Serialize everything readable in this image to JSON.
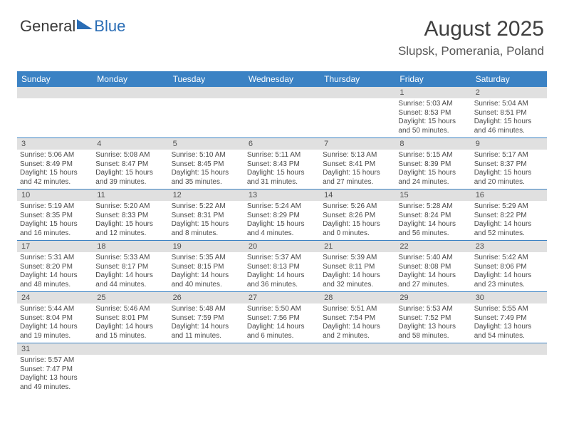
{
  "logo": {
    "part1": "General",
    "part2": "Blue"
  },
  "title": "August 2025",
  "location": "Slupsk, Pomerania, Poland",
  "weekdays": [
    "Sunday",
    "Monday",
    "Tuesday",
    "Wednesday",
    "Thursday",
    "Friday",
    "Saturday"
  ],
  "colors": {
    "header_bg": "#3b82c4",
    "daynum_bg": "#e0e0e0",
    "text": "#4a4a4a"
  },
  "weeks": [
    {
      "numbers": [
        "",
        "",
        "",
        "",
        "",
        "1",
        "2"
      ],
      "cells": [
        "",
        "",
        "",
        "",
        "",
        "Sunrise: 5:03 AM\nSunset: 8:53 PM\nDaylight: 15 hours\nand 50 minutes.",
        "Sunrise: 5:04 AM\nSunset: 8:51 PM\nDaylight: 15 hours\nand 46 minutes."
      ]
    },
    {
      "numbers": [
        "3",
        "4",
        "5",
        "6",
        "7",
        "8",
        "9"
      ],
      "cells": [
        "Sunrise: 5:06 AM\nSunset: 8:49 PM\nDaylight: 15 hours\nand 42 minutes.",
        "Sunrise: 5:08 AM\nSunset: 8:47 PM\nDaylight: 15 hours\nand 39 minutes.",
        "Sunrise: 5:10 AM\nSunset: 8:45 PM\nDaylight: 15 hours\nand 35 minutes.",
        "Sunrise: 5:11 AM\nSunset: 8:43 PM\nDaylight: 15 hours\nand 31 minutes.",
        "Sunrise: 5:13 AM\nSunset: 8:41 PM\nDaylight: 15 hours\nand 27 minutes.",
        "Sunrise: 5:15 AM\nSunset: 8:39 PM\nDaylight: 15 hours\nand 24 minutes.",
        "Sunrise: 5:17 AM\nSunset: 8:37 PM\nDaylight: 15 hours\nand 20 minutes."
      ]
    },
    {
      "numbers": [
        "10",
        "11",
        "12",
        "13",
        "14",
        "15",
        "16"
      ],
      "cells": [
        "Sunrise: 5:19 AM\nSunset: 8:35 PM\nDaylight: 15 hours\nand 16 minutes.",
        "Sunrise: 5:20 AM\nSunset: 8:33 PM\nDaylight: 15 hours\nand 12 minutes.",
        "Sunrise: 5:22 AM\nSunset: 8:31 PM\nDaylight: 15 hours\nand 8 minutes.",
        "Sunrise: 5:24 AM\nSunset: 8:29 PM\nDaylight: 15 hours\nand 4 minutes.",
        "Sunrise: 5:26 AM\nSunset: 8:26 PM\nDaylight: 15 hours\nand 0 minutes.",
        "Sunrise: 5:28 AM\nSunset: 8:24 PM\nDaylight: 14 hours\nand 56 minutes.",
        "Sunrise: 5:29 AM\nSunset: 8:22 PM\nDaylight: 14 hours\nand 52 minutes."
      ]
    },
    {
      "numbers": [
        "17",
        "18",
        "19",
        "20",
        "21",
        "22",
        "23"
      ],
      "cells": [
        "Sunrise: 5:31 AM\nSunset: 8:20 PM\nDaylight: 14 hours\nand 48 minutes.",
        "Sunrise: 5:33 AM\nSunset: 8:17 PM\nDaylight: 14 hours\nand 44 minutes.",
        "Sunrise: 5:35 AM\nSunset: 8:15 PM\nDaylight: 14 hours\nand 40 minutes.",
        "Sunrise: 5:37 AM\nSunset: 8:13 PM\nDaylight: 14 hours\nand 36 minutes.",
        "Sunrise: 5:39 AM\nSunset: 8:11 PM\nDaylight: 14 hours\nand 32 minutes.",
        "Sunrise: 5:40 AM\nSunset: 8:08 PM\nDaylight: 14 hours\nand 27 minutes.",
        "Sunrise: 5:42 AM\nSunset: 8:06 PM\nDaylight: 14 hours\nand 23 minutes."
      ]
    },
    {
      "numbers": [
        "24",
        "25",
        "26",
        "27",
        "28",
        "29",
        "30"
      ],
      "cells": [
        "Sunrise: 5:44 AM\nSunset: 8:04 PM\nDaylight: 14 hours\nand 19 minutes.",
        "Sunrise: 5:46 AM\nSunset: 8:01 PM\nDaylight: 14 hours\nand 15 minutes.",
        "Sunrise: 5:48 AM\nSunset: 7:59 PM\nDaylight: 14 hours\nand 11 minutes.",
        "Sunrise: 5:50 AM\nSunset: 7:56 PM\nDaylight: 14 hours\nand 6 minutes.",
        "Sunrise: 5:51 AM\nSunset: 7:54 PM\nDaylight: 14 hours\nand 2 minutes.",
        "Sunrise: 5:53 AM\nSunset: 7:52 PM\nDaylight: 13 hours\nand 58 minutes.",
        "Sunrise: 5:55 AM\nSunset: 7:49 PM\nDaylight: 13 hours\nand 54 minutes."
      ]
    },
    {
      "numbers": [
        "31",
        "",
        "",
        "",
        "",
        "",
        ""
      ],
      "cells": [
        "Sunrise: 5:57 AM\nSunset: 7:47 PM\nDaylight: 13 hours\nand 49 minutes.",
        "",
        "",
        "",
        "",
        "",
        ""
      ]
    }
  ]
}
